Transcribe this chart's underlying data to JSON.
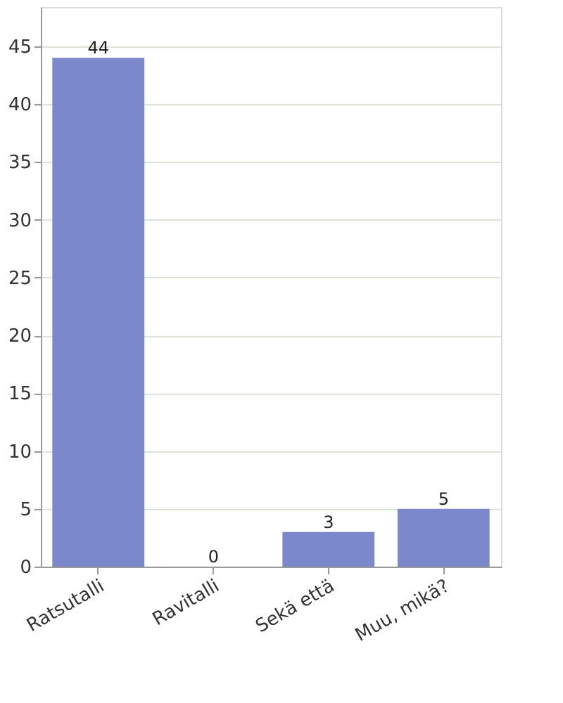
{
  "chart_data": {
    "type": "bar",
    "categories": [
      "Ratsutalli",
      "Ravitalli",
      "Sekä että",
      "Muu, mikä?"
    ],
    "values": [
      44,
      0,
      3,
      5
    ],
    "color": "#7b88cc",
    "ylim": [
      0,
      48.4
    ],
    "yticks": [
      0,
      5,
      10,
      15,
      20,
      25,
      30,
      35,
      40,
      45
    ],
    "grid": "y",
    "data_labels": true
  }
}
